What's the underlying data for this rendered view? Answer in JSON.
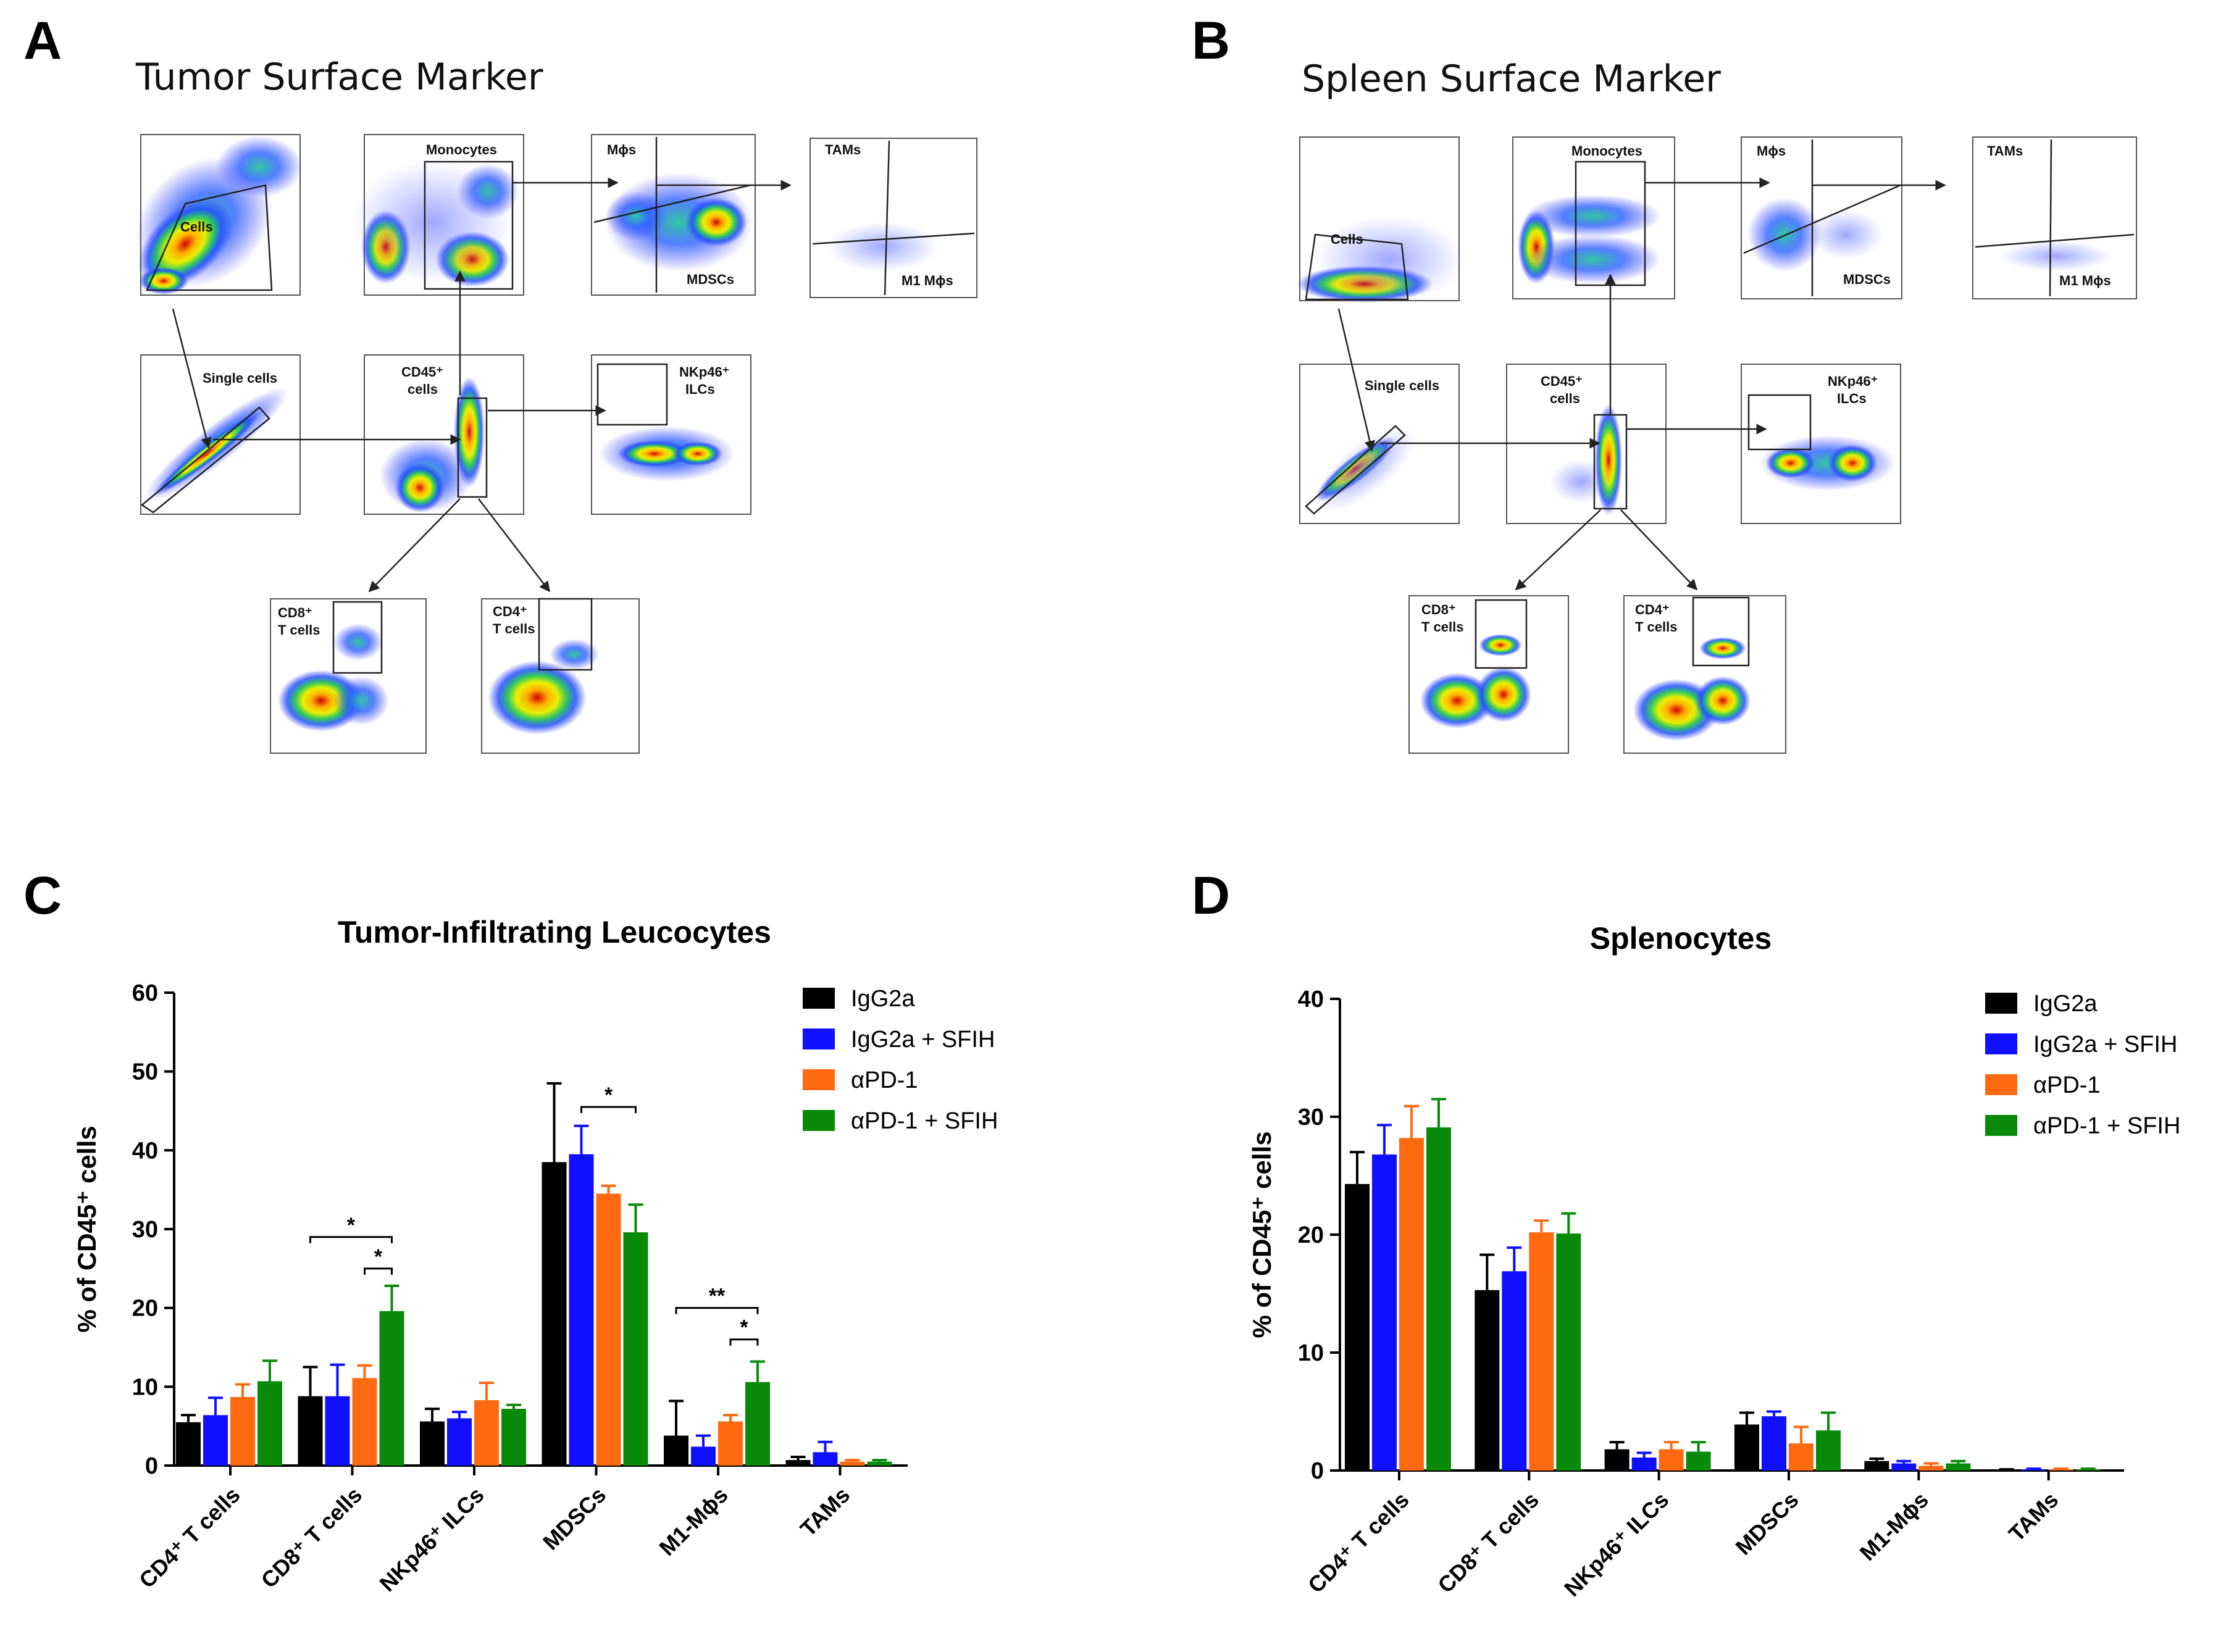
{
  "panels": {
    "A": {
      "letter": "A",
      "title": "Tumor Surface Marker"
    },
    "B": {
      "letter": "B",
      "title": "Spleen Surface Marker"
    },
    "C": {
      "letter": "C"
    },
    "D": {
      "letter": "D"
    }
  },
  "flow_A": {
    "cells": "Cells",
    "monocytes": "Monocytes",
    "mphi": "Mϕs",
    "mdscs": "MDSCs",
    "tams": "TAMs",
    "m1": "M1 Mϕs",
    "single": "Single cells",
    "cd45_1": "CD45⁺",
    "cd45_2": "cells",
    "nk_1": "NKp46⁺",
    "nk_2": "ILCs",
    "cd8_1": "CD8⁺",
    "cd8_2": "T cells",
    "cd4_1": "CD4⁺",
    "cd4_2": "T cells"
  },
  "flow_B": {
    "cells": "Cells",
    "monocytes": "Monocytes",
    "mphi": "Mϕs",
    "mdscs": "MDSCs",
    "tams": "TAMs",
    "m1": "M1 Mϕs",
    "single": "Single cells",
    "cd45_1": "CD45⁺",
    "cd45_2": "cells",
    "nk_1": "NKp46⁺",
    "nk_2": "ILCs",
    "cd8_1": "CD8⁺",
    "cd8_2": "T cells",
    "cd4_1": "CD4⁺",
    "cd4_2": "T cells"
  },
  "colors": {
    "IgG2a": "#000000",
    "IgG2a + SFIH": "#1010ff",
    "αPD-1": "#ff6a10",
    "αPD-1 + SFIH": "#0a8a0a"
  },
  "chart_data": [
    {
      "type": "bar",
      "panel": "C",
      "title": "Tumor-Infiltrating Leucocytes",
      "ylabel": "% of CD45⁺ cells",
      "ylim": [
        0,
        60
      ],
      "yticks": [
        0,
        10,
        20,
        30,
        40,
        50,
        60
      ],
      "categories": [
        "CD4⁺ T cells",
        "CD8⁺ T cells",
        "NKp46⁺ ILCs",
        "MDSCs",
        "M1-Mϕs",
        "TAMs"
      ],
      "series": [
        {
          "name": "IgG2a",
          "values": [
            5.5,
            8.8,
            5.6,
            38.5,
            3.8,
            0.7
          ],
          "errors": [
            0.9,
            3.7,
            1.6,
            10.0,
            4.4,
            0.4
          ]
        },
        {
          "name": "IgG2a + SFIH",
          "values": [
            6.4,
            8.8,
            6.0,
            39.5,
            2.4,
            1.7
          ],
          "errors": [
            2.2,
            4.0,
            0.8,
            3.6,
            1.4,
            1.3
          ]
        },
        {
          "name": "αPD-1",
          "values": [
            8.7,
            11.1,
            8.3,
            34.5,
            5.6,
            0.5
          ],
          "errors": [
            1.6,
            1.6,
            2.2,
            1.0,
            0.8,
            0.2
          ]
        },
        {
          "name": "αPD-1 + SFIH",
          "values": [
            10.7,
            19.6,
            7.2,
            29.6,
            10.6,
            0.5
          ],
          "errors": [
            2.6,
            3.2,
            0.5,
            3.5,
            2.6,
            0.2
          ]
        }
      ],
      "significance": [
        {
          "label": "*",
          "category": 1,
          "from": 0,
          "to": 3,
          "y": 29.0
        },
        {
          "label": "*",
          "category": 1,
          "from": 2,
          "to": 3,
          "y": 25.0
        },
        {
          "label": "*",
          "category": 3,
          "from": 1,
          "to": 3,
          "y": 45.5
        },
        {
          "label": "**",
          "category": 4,
          "from": 0,
          "to": 3,
          "y": 20.0
        },
        {
          "label": "*",
          "category": 4,
          "from": 2,
          "to": 3,
          "y": 16.0
        }
      ],
      "legend": "top-right"
    },
    {
      "type": "bar",
      "panel": "D",
      "title": "Splenocytes",
      "ylabel": "% of CD45⁺ cells",
      "ylim": [
        0,
        40
      ],
      "yticks": [
        0,
        10,
        20,
        30,
        40
      ],
      "categories": [
        "CD4⁺ T cells",
        "CD8⁺ T cells",
        "NKp46⁺ ILCs",
        "MDSCs",
        "M1-Mϕs",
        "TAMs"
      ],
      "series": [
        {
          "name": "IgG2a",
          "values": [
            24.3,
            15.3,
            1.8,
            3.9,
            0.8,
            0.05
          ],
          "errors": [
            2.7,
            3.0,
            0.6,
            1.0,
            0.2,
            0.05
          ]
        },
        {
          "name": "IgG2a + SFIH",
          "values": [
            26.8,
            16.9,
            1.1,
            4.6,
            0.6,
            0.1
          ],
          "errors": [
            2.5,
            2.0,
            0.4,
            0.4,
            0.2,
            0.05
          ]
        },
        {
          "name": "αPD-1",
          "values": [
            28.2,
            20.2,
            1.8,
            2.3,
            0.4,
            0.1
          ],
          "errors": [
            2.7,
            1.0,
            0.6,
            1.4,
            0.2,
            0.05
          ]
        },
        {
          "name": "αPD-1 + SFIH",
          "values": [
            29.1,
            20.1,
            1.6,
            3.4,
            0.6,
            0.1
          ],
          "errors": [
            2.4,
            1.7,
            0.8,
            1.5,
            0.2,
            0.05
          ]
        }
      ],
      "significance": [],
      "legend": "top-right"
    }
  ]
}
